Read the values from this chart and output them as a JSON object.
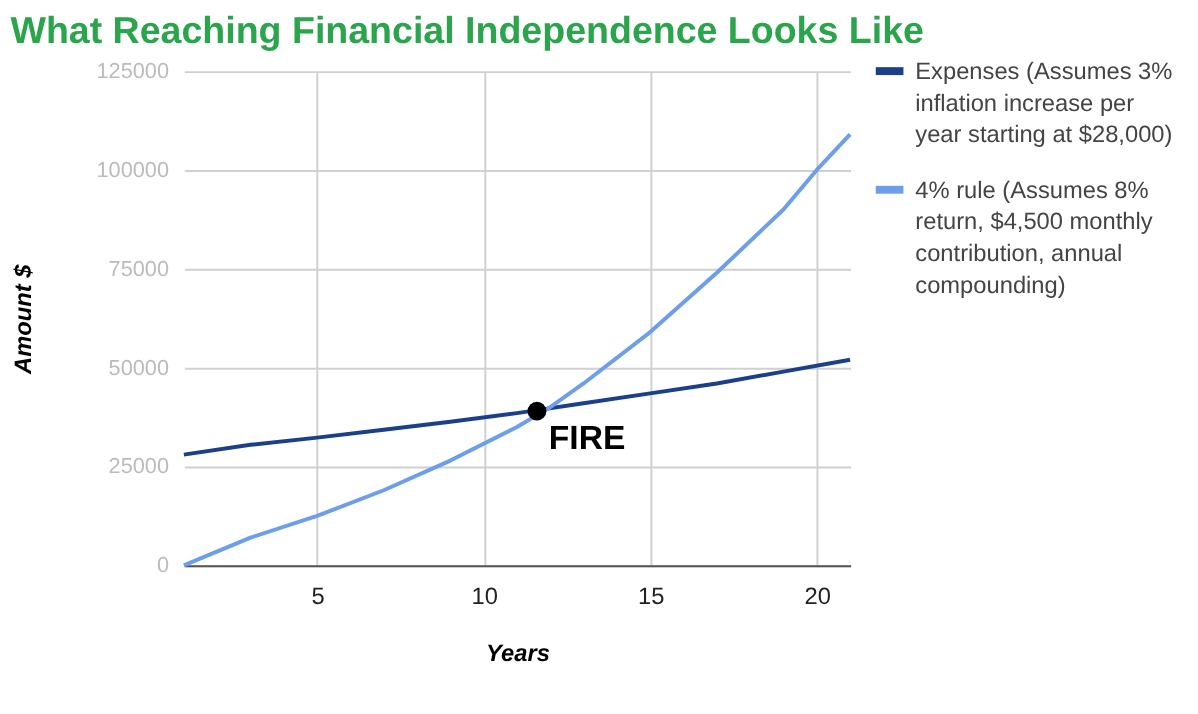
{
  "chart_data": {
    "type": "line",
    "title": "What Reaching Financial Independence Looks Like",
    "xlabel": "Years",
    "ylabel": "Amount $",
    "series": [
      {
        "name": "Expenses (Assumes 3% inflation increase per year starting at $28,000)",
        "color": "#1c3f8c",
        "x": [
          1,
          3,
          5,
          7,
          9,
          11,
          13,
          15,
          17,
          19,
          21
        ],
        "values": [
          28000,
          30500,
          32300,
          34300,
          36300,
          38500,
          41000,
          43500,
          46000,
          49000,
          52000
        ]
      },
      {
        "name": "4% rule (Assumes 8% return, $4,500 monthly contribution, annual compounding)",
        "color": "#6d9eeb",
        "x": [
          1,
          3,
          5,
          7,
          9,
          11,
          12,
          13,
          15,
          17,
          19,
          20,
          21
        ],
        "values": [
          0,
          7000,
          12500,
          19000,
          26500,
          35000,
          40000,
          46000,
          59000,
          74000,
          90000,
          100000,
          109000
        ]
      }
    ],
    "xlim": [
      1,
      21
    ],
    "xticks": [
      5,
      10,
      15,
      20
    ],
    "ylim": [
      0,
      125000
    ],
    "yticks": [
      0,
      25000,
      50000,
      75000,
      100000,
      125000
    ],
    "grid": true,
    "legend": "right",
    "marker": "none",
    "line_style": "solid",
    "annotations": [
      {
        "text": "FIRE",
        "x": 11.6,
        "y": 39000
      }
    ]
  }
}
